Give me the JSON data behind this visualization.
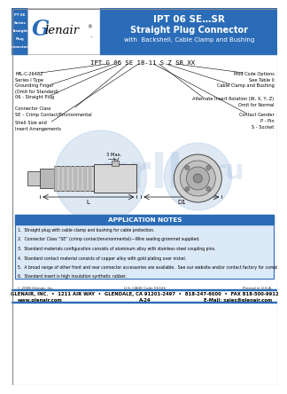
{
  "title_main": "IPT 06 SE…SR",
  "title_sub": "Straight Plug Connector",
  "title_sub2": "with  Backshell, Cable Clamp and Bushing",
  "header_blue": "#2b6cb8",
  "logo_blue": "#2b6cb8",
  "part_number_line": "IPT G 06 SE 18-11 S Z SR XX",
  "left_labels": [
    [
      "MIL-C-26482",
      "Series I Type"
    ],
    [
      "Grounding Finger",
      "(Omit for Standard)"
    ],
    [
      "06 - Straight Plug"
    ],
    [
      "Connector Class",
      "SE – Crimp Contact/Environmental"
    ],
    [
      "Shell Size and",
      "Insert Arrangements"
    ]
  ],
  "right_labels": [
    [
      "Mod Code Options",
      "See Table II"
    ],
    [
      "Cable Clamp and Bushing"
    ],
    [
      "Alternate Insert Rotation (W, X, Y, Z)",
      "Omit for Normal"
    ],
    [
      "Contact Gender",
      "P - Pin",
      "S - Socket"
    ]
  ],
  "app_notes_title": "APPLICATION NOTES",
  "app_notes_bg": "#dce9f7",
  "app_notes_header_bg": "#2b6cb8",
  "app_notes": [
    "1.  Straight plug with cable clamp and bushing for cable protection.",
    "2.  Connector Class “SE” (crimp contact/environmental)—Wire sealing grommet supplied.",
    "3.  Standard materials configuration consists of aluminum alloy with stainless steel coupling pins.",
    "4.  Standard contact material consists of copper alloy with gold plating over nickel.",
    "5.  A broad range of other front and rear connector accessories are available.  See our website and/or contact factory for complete information.",
    "6.  Standard insert is high insulation synthetic rubber."
  ],
  "footer_copyright": "© 2008 Glenair, Inc.",
  "footer_cage": "U.S. CAGE Code 06324",
  "footer_printed": "Printed in U.S.A.",
  "footer_company": "GLENAIR, INC.  •  1211 AIR WAY  •  GLENDALE, CA 91201-2497  •  818-247-6000  •  FAX 818-500-9912",
  "footer_web": "www.glenair.com",
  "footer_partno": "A-24",
  "footer_email": "E-Mail: sales@glenair.com",
  "bg_color": "#ffffff"
}
